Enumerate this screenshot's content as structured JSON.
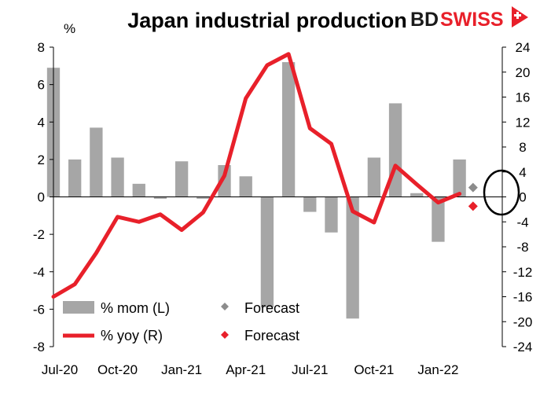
{
  "chart_data": {
    "type": "bar",
    "title": "Japan industrial production",
    "left_axis_unit": "%",
    "categories": [
      "Jul-20",
      "Aug-20",
      "Sep-20",
      "Oct-20",
      "Nov-20",
      "Dec-20",
      "Jan-21",
      "Feb-21",
      "Mar-21",
      "Apr-21",
      "May-21",
      "Jun-21",
      "Jul-21",
      "Aug-21",
      "Sep-21",
      "Oct-21",
      "Nov-21",
      "Dec-21",
      "Jan-22",
      "Feb-22",
      "Mar-22",
      "Apr-22"
    ],
    "x_tick_labels": [
      "Jul-20",
      "Oct-20",
      "Jan-21",
      "Apr-21",
      "Jul-21",
      "Oct-21",
      "Jan-22"
    ],
    "series": [
      {
        "name": "% mom (L)",
        "type": "bar",
        "axis": "left",
        "color": "#a6a6a6",
        "values": [
          6.9,
          2.0,
          3.7,
          2.1,
          0.7,
          -0.1,
          1.9,
          -0.1,
          1.7,
          1.1,
          -5.9,
          7.2,
          -0.8,
          -1.9,
          -6.5,
          2.1,
          5.0,
          0.2,
          -2.4,
          2.0,
          null,
          null
        ]
      },
      {
        "name": "% yoy (R)",
        "type": "line",
        "axis": "right",
        "color": "#e8202a",
        "values": [
          -16.0,
          -14.0,
          -9.0,
          -3.2,
          -4.0,
          -2.8,
          -5.3,
          -2.5,
          3.4,
          15.8,
          21.1,
          22.9,
          11.0,
          8.5,
          -2.3,
          -4.1,
          5.0,
          2.0,
          -0.9,
          0.5,
          null,
          null
        ]
      },
      {
        "name": "Forecast",
        "type": "marker",
        "axis": "left",
        "color": "#8c8c8c",
        "points": [
          {
            "category": "Mar-22",
            "value": 0.5
          }
        ]
      },
      {
        "name": "Forecast",
        "type": "marker",
        "axis": "right",
        "color": "#e8202a",
        "points": [
          {
            "category": "Mar-22",
            "value": -1.5
          }
        ]
      }
    ],
    "ylim_left": [
      -8,
      8
    ],
    "yticks_left": [
      8,
      6,
      4,
      2,
      0,
      -2,
      -4,
      -6,
      -8
    ],
    "ylim_right": [
      -24,
      24
    ],
    "yticks_right": [
      24,
      20,
      16,
      12,
      8,
      4,
      0,
      -4,
      -8,
      -12,
      -16,
      -20,
      -24
    ],
    "grid": false,
    "legend": {
      "placement": "bottom-left",
      "items": [
        {
          "label": "% mom (L)",
          "symbol": "bar",
          "color": "#a6a6a6"
        },
        {
          "label": "Forecast",
          "symbol": "diamond",
          "color": "#8c8c8c"
        },
        {
          "label": "% yoy (R)",
          "symbol": "line",
          "color": "#e8202a"
        },
        {
          "label": "Forecast",
          "symbol": "diamond",
          "color": "#e8202a"
        }
      ]
    },
    "annotation": "circle around forecast markers"
  },
  "logo": {
    "text_dark": "BD",
    "text_accent": "SWISS",
    "dark_color": "#1a1a1a",
    "accent_color": "#e8202a"
  }
}
